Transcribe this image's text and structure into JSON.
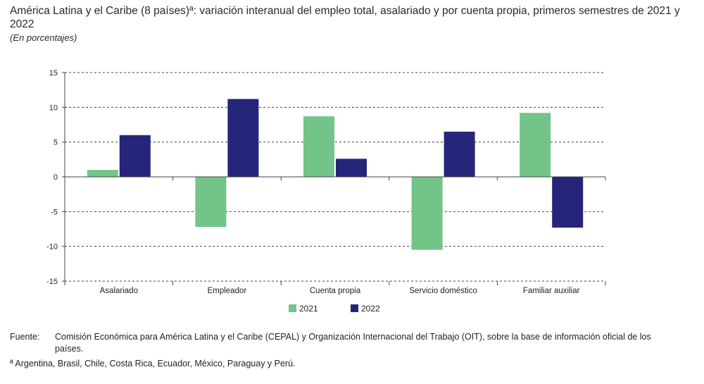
{
  "header": {
    "title": "América Latina y el Caribe (8 países)ª: variación interanual del empleo total, asalariado y por cuenta propia, primeros semestres de 2021 y 2022",
    "subtitle": "(En porcentajes)"
  },
  "chart_data": {
    "type": "bar",
    "categories": [
      "Asalariado",
      "Empleador",
      "Cuenta propia",
      "Servicio doméstico",
      "Familiar auxiliar"
    ],
    "series": [
      {
        "name": "2021",
        "values": [
          1.0,
          -7.2,
          8.7,
          -10.5,
          9.2
        ],
        "color": "#72c489"
      },
      {
        "name": "2022",
        "values": [
          6.0,
          11.2,
          2.6,
          6.5,
          -7.3
        ],
        "color": "#25257a"
      }
    ],
    "yticks": [
      15,
      10,
      5,
      0,
      -5,
      -10,
      -15
    ],
    "ylim": [
      -15,
      15
    ],
    "grid": "dashed horizontal",
    "legend": "bottom-center",
    "xlabel": "",
    "ylabel": ""
  },
  "notes": {
    "source_label": "Fuente:",
    "source_text": "Comisión Económica para América Latina y el Caribe (CEPAL) y Organización Internacional del Trabajo (OIT), sobre la base de información oficial de los países.",
    "footnote": "ª Argentina, Brasil, Chile, Costa Rica, Ecuador, México, Paraguay y Perú."
  }
}
